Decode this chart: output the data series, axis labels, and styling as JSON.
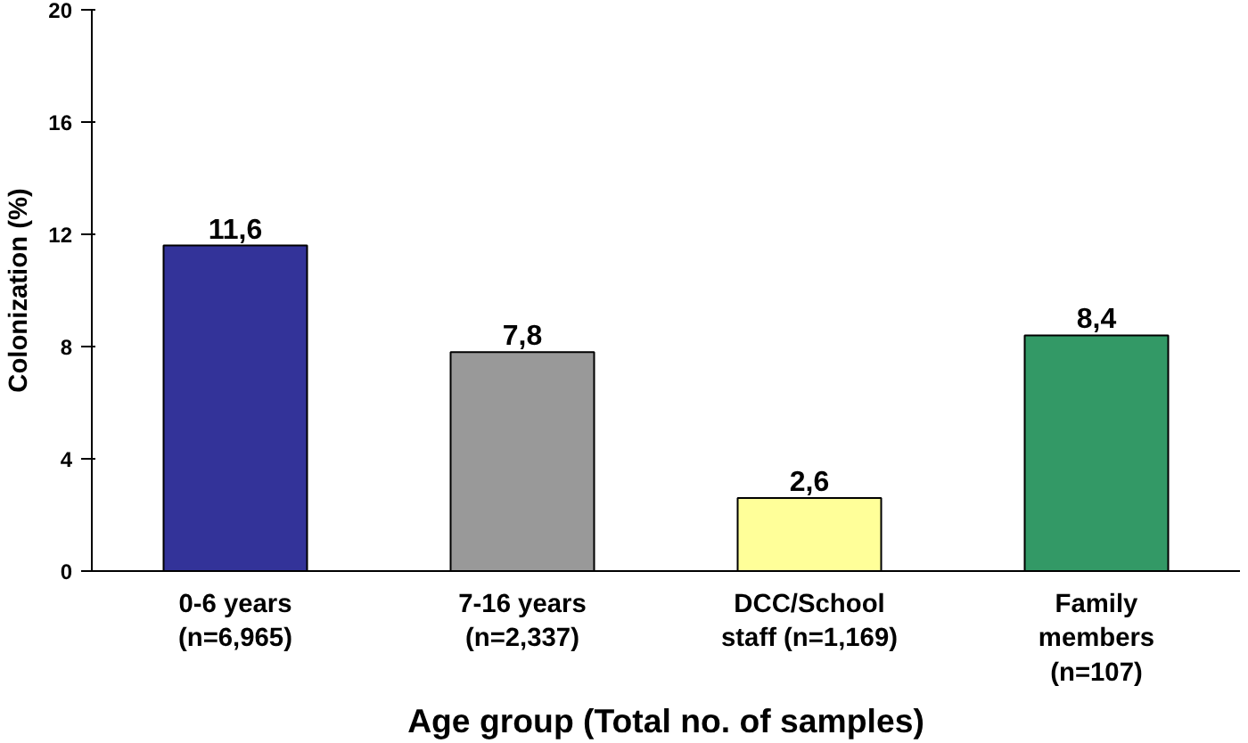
{
  "chart_data": {
    "type": "bar",
    "xlabel": "Age group (Total no. of samples)",
    "ylabel": "Colonization (%)",
    "categories": [
      "0-6 years\n(n=6,965)",
      "7-16 years\n(n=2,337)",
      "DCC/School\nstaff (n=1,169)",
      "Family\nmembers\n(n=107)"
    ],
    "values": [
      11.6,
      7.8,
      2.6,
      8.4
    ],
    "value_labels": [
      "11,6",
      "7,8",
      "2,6",
      "8,4"
    ],
    "colors": [
      "#333399",
      "#999999",
      "#ffff99",
      "#339966"
    ],
    "ylim": [
      0,
      20
    ],
    "yticks": [
      0,
      4,
      8,
      12,
      16,
      20
    ],
    "grid": false
  }
}
